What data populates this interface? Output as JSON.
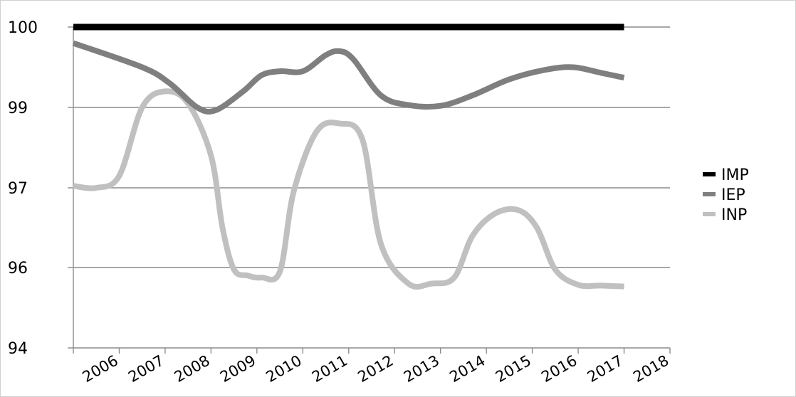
{
  "chart_data": {
    "type": "line",
    "categories": [
      "2006",
      "2007",
      "2008",
      "2009",
      "2010",
      "2011",
      "2012",
      "2013",
      "2014",
      "2015",
      "2016",
      "2017",
      "2018"
    ],
    "y_ticks": [
      "94",
      "96",
      "97",
      "99",
      "100"
    ],
    "ylim": [
      94,
      100
    ],
    "grid": true,
    "legend_position": "right",
    "series": [
      {
        "name": "IMP",
        "color": "#000000",
        "x": [
          2005.5,
          2017.5
        ],
        "values": [
          100,
          100
        ]
      },
      {
        "name": "IEP",
        "color": "#7f7f7f",
        "x": [
          2005.5,
          2007.0,
          2007.6,
          2008.2,
          2008.6,
          2009.2,
          2009.6,
          2010.0,
          2010.5,
          2011.0,
          2011.3,
          2011.6,
          2012.2,
          2012.8,
          2013.5,
          2014.2,
          2015.0,
          2015.8,
          2016.4,
          2017.0,
          2017.5
        ],
        "values": [
          99.8,
          99.5,
          99.3,
          99.0,
          98.93,
          99.2,
          99.4,
          99.45,
          99.45,
          99.65,
          99.7,
          99.6,
          99.15,
          99.03,
          99.02,
          99.15,
          99.35,
          99.47,
          99.5,
          99.43,
          99.37
        ]
      },
      {
        "name": "INP",
        "color": "#c0c0c0",
        "x": [
          2005.5,
          2006.0,
          2006.5,
          2007.0,
          2007.5,
          2008.0,
          2008.5,
          2008.75,
          2009.0,
          2009.3,
          2009.6,
          2010.0,
          2010.3,
          2010.8,
          2011.3,
          2011.8,
          2012.2,
          2012.8,
          2013.3,
          2013.8,
          2014.2,
          2014.7,
          2015.2,
          2015.6,
          2016.0,
          2016.5,
          2017.0,
          2017.5
        ],
        "values": [
          97.05,
          97.0,
          97.3,
          99.0,
          99.2,
          99.05,
          97.8,
          96.5,
          95.95,
          95.8,
          95.75,
          95.9,
          96.95,
          98.4,
          98.6,
          98.2,
          96.3,
          95.6,
          95.6,
          95.75,
          96.4,
          96.68,
          96.72,
          96.5,
          95.95,
          95.57,
          95.55,
          95.53
        ]
      }
    ]
  }
}
